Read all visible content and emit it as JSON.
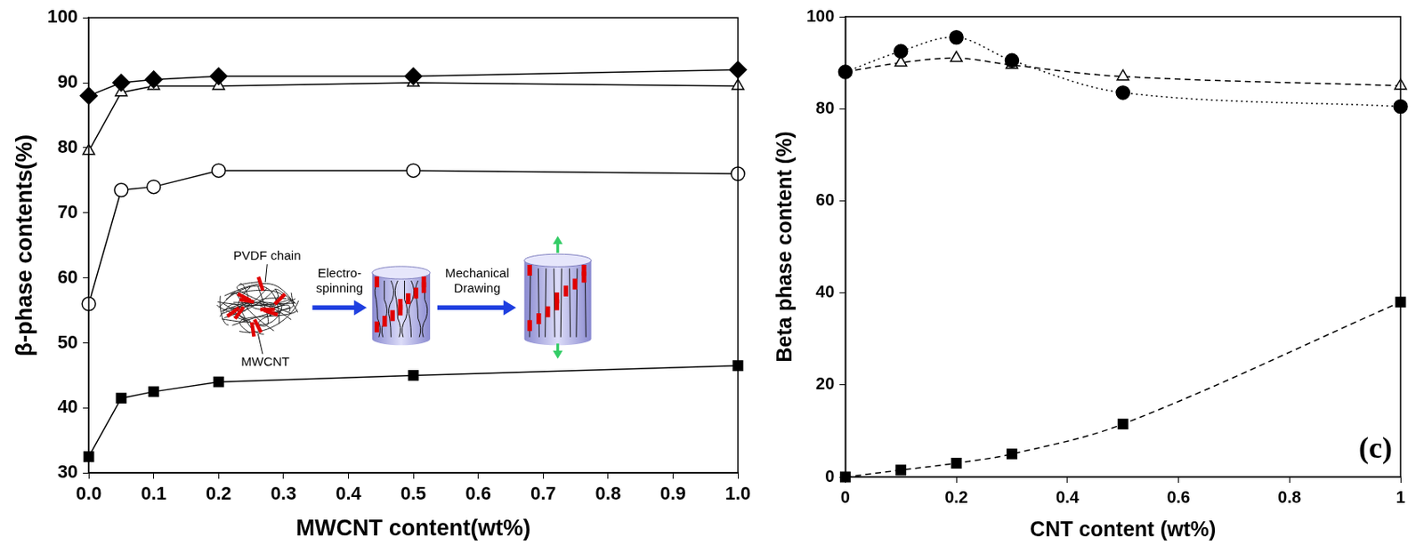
{
  "chart_data": [
    {
      "type": "line",
      "x_label": "MWCNT content(wt%)",
      "y_label": "β-phase contents(%)",
      "x": [
        0,
        0.05,
        0.1,
        0.2,
        0.5,
        1.0
      ],
      "series": [
        {
          "color": "#000000",
          "marker": "diamond",
          "line_style": "solid",
          "values": [
            88,
            90,
            90.5,
            91,
            91,
            92
          ]
        },
        {
          "color": "#000000",
          "marker": "triangle-open",
          "line_style": "solid",
          "values": [
            79.5,
            88.5,
            89.5,
            89.5,
            90,
            89.5
          ]
        },
        {
          "color": "#000000",
          "marker": "circle-open",
          "line_style": "solid",
          "values": [
            56,
            73.5,
            74,
            76.5,
            76.5,
            76
          ]
        },
        {
          "color": "#000000",
          "marker": "square",
          "line_style": "solid",
          "values": [
            32.5,
            41.5,
            42.5,
            44,
            45,
            46.5
          ]
        }
      ],
      "xlim": [
        0,
        1
      ],
      "xticks": [
        {
          "value": 0,
          "label": "0.0"
        },
        0.1,
        0.2,
        0.3,
        0.4,
        0.5,
        0.6,
        0.7,
        0.8,
        0.9,
        {
          "value": 1,
          "label": "1.0"
        }
      ],
      "ylim": [
        30,
        100
      ],
      "yticks": [
        30,
        40,
        50,
        60,
        70,
        80,
        90,
        100
      ],
      "grid": false,
      "annotations": [
        "PVDF chain",
        "MWCNT",
        "Electro-spinning",
        "Mechanical Drawing"
      ]
    },
    {
      "type": "line",
      "x_label": "CNT content (wt%)",
      "y_label": "Beta phase content (%)",
      "x": [
        0,
        0.1,
        0.2,
        0.3,
        0.5,
        1
      ],
      "series": [
        {
          "color": "#000000",
          "marker": "circle",
          "line_style": "dotted",
          "values": [
            88,
            92.5,
            95.5,
            90.5,
            83.5,
            80.5
          ]
        },
        {
          "color": "#000000",
          "marker": "triangle-open",
          "line_style": "dashed",
          "values": [
            88,
            90,
            91,
            89.5,
            87,
            85
          ]
        },
        {
          "color": "#000000",
          "marker": "square",
          "line_style": "dashed",
          "values": [
            0,
            1.5,
            3,
            5,
            11.5,
            38
          ]
        }
      ],
      "xlim": [
        0,
        1
      ],
      "xticks": [
        0,
        0.2,
        0.4,
        0.6,
        0.8,
        1
      ],
      "ylim": [
        0,
        100
      ],
      "yticks": [
        0,
        20,
        40,
        60,
        80,
        100
      ],
      "grid": false,
      "panel_label": "(c)"
    }
  ]
}
